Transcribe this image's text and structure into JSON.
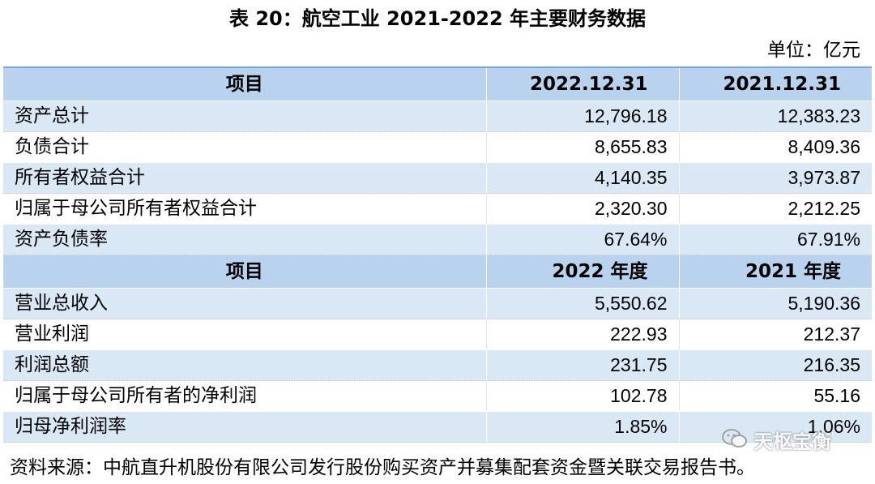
{
  "title": "表 20：航空工业 2021-2022 年主要财务数据",
  "unit": "单位：亿元",
  "balance_header": {
    "item": "项目",
    "col1": "2022.12.31",
    "col2": "2021.12.31"
  },
  "balance_rows": [
    {
      "label": "资产总计",
      "v1": "12,796.18",
      "v2": "12,383.23"
    },
    {
      "label": "负债合计",
      "v1": "8,655.83",
      "v2": "8,409.36"
    },
    {
      "label": "所有者权益合计",
      "v1": "4,140.35",
      "v2": "3,973.87"
    },
    {
      "label": "归属于母公司所有者权益合计",
      "v1": "2,320.30",
      "v2": "2,212.25"
    },
    {
      "label": "资产负债率",
      "v1": "67.64%",
      "v2": "67.91%"
    }
  ],
  "income_header": {
    "item": "项目",
    "col1": "2022 年度",
    "col2": "2021 年度"
  },
  "income_rows": [
    {
      "label": "营业总收入",
      "v1": "5,550.62",
      "v2": "5,190.36"
    },
    {
      "label": "营业利润",
      "v1": "222.93",
      "v2": "212.37"
    },
    {
      "label": "利润总额",
      "v1": "231.75",
      "v2": "216.35"
    },
    {
      "label": "归属于母公司所有者的净利润",
      "v1": "102.78",
      "v2": "55.16"
    },
    {
      "label": "归母净利润率",
      "v1": "1.85%",
      "v2": "1.06%"
    }
  ],
  "source": "资料来源：中航直升机股份有限公司发行股份购买资产并募集配套资金暨关联交易报告书。",
  "watermark": {
    "text": "天枢宝衡",
    "icon": "wechat-icon"
  }
}
